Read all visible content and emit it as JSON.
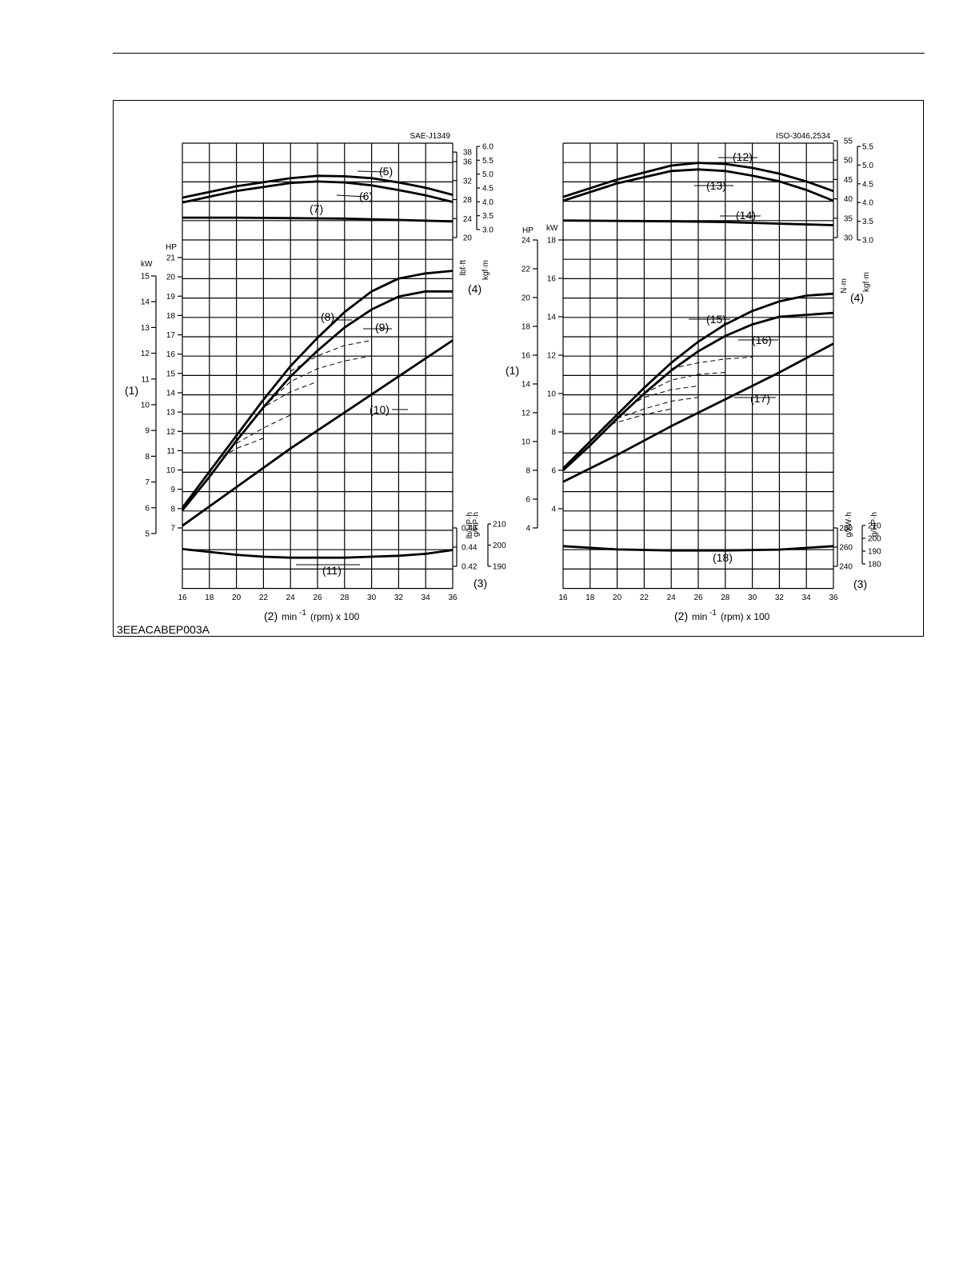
{
  "figure": {
    "code": "3EEACABEP003A"
  },
  "chart_data": [
    {
      "type": "line",
      "title": "SAE-J1349",
      "x_callout": "(2)",
      "x_unit": "min",
      "x_unit_sup": "-1",
      "x_unit_rest": "(rpm) x 100",
      "x_ticks": [
        "16",
        "18",
        "20",
        "22",
        "24",
        "26",
        "28",
        "30",
        "32",
        "34",
        "36"
      ],
      "xlim": [
        16,
        36
      ],
      "grid": true,
      "axes": {
        "kw": {
          "unit": "kW",
          "ticks": [
            "5",
            "6",
            "7",
            "8",
            "9",
            "10",
            "11",
            "12",
            "13",
            "14",
            "15"
          ]
        },
        "hp": {
          "unit": "HP",
          "ticks": [
            "7",
            "8",
            "9",
            "10",
            "11",
            "12",
            "13",
            "14",
            "15",
            "16",
            "17",
            "18",
            "19",
            "20",
            "21"
          ]
        },
        "lbft": {
          "unit": "lbf·ft",
          "ticks": [
            "20",
            "24",
            "28",
            "32",
            "36",
            "38"
          ]
        },
        "kgfm": {
          "unit": "kgf·m",
          "ticks": [
            "3.0",
            "3.5",
            "4.0",
            "4.5",
            "5.0",
            "5.5",
            "6.0"
          ]
        },
        "bsfc_lb": {
          "unit": "lb/HP·h",
          "ticks": [
            "0.42",
            "0.44",
            "0.46"
          ]
        },
        "bsfc_g": {
          "unit": "g/HP·h",
          "ticks": [
            "190",
            "200",
            "210"
          ]
        }
      },
      "callouts": {
        "power_axis": "(1)",
        "bsfc_axis": "(3)",
        "torque_axis": "(4)"
      },
      "series": [
        {
          "name": "(5)",
          "axis": "lbft",
          "points": [
            [
              16,
              28.4
            ],
            [
              20,
              30.8
            ],
            [
              24,
              32.5
            ],
            [
              26,
              33.0
            ],
            [
              28,
              32.9
            ],
            [
              30,
              32.5
            ],
            [
              32,
              31.6
            ],
            [
              34,
              30.5
            ],
            [
              36,
              29.0
            ]
          ]
        },
        {
          "name": "(6)",
          "axis": "lbft",
          "points": [
            [
              16,
              27.4
            ],
            [
              20,
              29.8
            ],
            [
              24,
              31.5
            ],
            [
              26,
              31.8
            ],
            [
              28,
              31.6
            ],
            [
              30,
              31.0
            ],
            [
              32,
              30.0
            ],
            [
              34,
              28.9
            ],
            [
              36,
              27.5
            ]
          ]
        },
        {
          "name": "(7)",
          "axis": "lbft",
          "points": [
            [
              16,
              24.2
            ],
            [
              20,
              24.2
            ],
            [
              24,
              24.1
            ],
            [
              28,
              24.0
            ],
            [
              32,
              23.7
            ],
            [
              36,
              23.4
            ]
          ]
        },
        {
          "name": "(8)",
          "axis": "kw",
          "points": [
            [
              16,
              6.0
            ],
            [
              18,
              7.4
            ],
            [
              20,
              8.8
            ],
            [
              22,
              10.2
            ],
            [
              24,
              11.5
            ],
            [
              26,
              12.6
            ],
            [
              28,
              13.6
            ],
            [
              30,
              14.4
            ],
            [
              32,
              14.9
            ],
            [
              34,
              15.1
            ],
            [
              36,
              15.2
            ]
          ]
        },
        {
          "name": "(9)",
          "axis": "kw",
          "points": [
            [
              16,
              5.9
            ],
            [
              18,
              7.2
            ],
            [
              20,
              8.6
            ],
            [
              22,
              9.9
            ],
            [
              24,
              11.1
            ],
            [
              26,
              12.1
            ],
            [
              28,
              13.0
            ],
            [
              30,
              13.7
            ],
            [
              32,
              14.2
            ],
            [
              34,
              14.4
            ],
            [
              36,
              14.4
            ]
          ]
        },
        {
          "name": "(10)",
          "axis": "kw",
          "points": [
            [
              16,
              5.3
            ],
            [
              20,
              6.8
            ],
            [
              24,
              8.3
            ],
            [
              28,
              9.7
            ],
            [
              32,
              11.1
            ],
            [
              36,
              12.5
            ]
          ]
        },
        {
          "name": "(11)",
          "axis": "bsfc_lb",
          "points": [
            [
              16,
              0.438
            ],
            [
              18,
              0.435
            ],
            [
              20,
              0.432
            ],
            [
              22,
              0.43
            ],
            [
              24,
              0.429
            ],
            [
              26,
              0.429
            ],
            [
              28,
              0.429
            ],
            [
              30,
              0.43
            ],
            [
              32,
              0.431
            ],
            [
              34,
              0.433
            ],
            [
              36,
              0.437
            ]
          ]
        }
      ],
      "partial_load_curves": [
        {
          "points": [
            [
              24,
              11.3
            ],
            [
              26,
              11.9
            ],
            [
              28,
              12.3
            ],
            [
              30,
              12.5
            ]
          ]
        },
        {
          "points": [
            [
              22,
              9.9
            ],
            [
              24,
              10.9
            ],
            [
              26,
              11.4
            ],
            [
              28,
              11.7
            ],
            [
              30,
              11.9
            ]
          ]
        },
        {
          "points": [
            [
              21,
              9.3
            ],
            [
              22,
              9.9
            ],
            [
              24,
              10.5
            ],
            [
              26,
              10.9
            ]
          ]
        },
        {
          "points": [
            [
              20,
              8.5
            ],
            [
              22,
              9.1
            ],
            [
              24,
              9.6
            ]
          ]
        },
        {
          "points": [
            [
              19,
              8.0
            ],
            [
              20,
              8.3
            ],
            [
              22,
              8.7
            ]
          ]
        }
      ]
    },
    {
      "type": "line",
      "title": "ISO-3046,2534",
      "x_callout": "(2)",
      "x_unit": "min",
      "x_unit_sup": "-1",
      "x_unit_rest": "(rpm) x 100",
      "x_ticks": [
        "16",
        "18",
        "20",
        "22",
        "24",
        "26",
        "28",
        "30",
        "32",
        "34",
        "36"
      ],
      "xlim": [
        16,
        36
      ],
      "grid": true,
      "axes": {
        "hp": {
          "unit": "HP",
          "ticks": [
            "4",
            "6",
            "8",
            "10",
            "12",
            "14",
            "16",
            "18",
            "20",
            "22",
            "24"
          ]
        },
        "kw": {
          "unit": "kW",
          "ticks": [
            "4",
            "6",
            "8",
            "10",
            "12",
            "14",
            "16",
            "18"
          ]
        },
        "nm": {
          "unit": "N·m",
          "ticks": [
            "30",
            "35",
            "40",
            "45",
            "50",
            "55"
          ]
        },
        "kgfm": {
          "unit": "kgf·m",
          "ticks": [
            "3.0",
            "3.5",
            "4.0",
            "4.5",
            "5.0",
            "5.5"
          ]
        },
        "bsfc_kw": {
          "unit": "g/kW·h",
          "ticks": [
            "240",
            "260",
            "280"
          ]
        },
        "bsfc_hp": {
          "unit": "g/HP·h",
          "ticks": [
            "180",
            "190",
            "200",
            "210"
          ]
        }
      },
      "callouts": {
        "power_axis": "(1)",
        "bsfc_axis": "(3)",
        "torque_axis": "(4)"
      },
      "series": [
        {
          "name": "(12)",
          "axis": "nm",
          "points": [
            [
              16,
              40.5
            ],
            [
              20,
              45.0
            ],
            [
              24,
              48.6
            ],
            [
              26,
              49.3
            ],
            [
              28,
              49.0
            ],
            [
              30,
              48.0
            ],
            [
              32,
              46.5
            ],
            [
              34,
              44.5
            ],
            [
              36,
              42.0
            ]
          ]
        },
        {
          "name": "(13)",
          "axis": "nm",
          "points": [
            [
              16,
              39.5
            ],
            [
              20,
              44.0
            ],
            [
              24,
              47.2
            ],
            [
              26,
              47.6
            ],
            [
              28,
              47.2
            ],
            [
              30,
              46.0
            ],
            [
              32,
              44.5
            ],
            [
              34,
              42.3
            ],
            [
              36,
              39.5
            ]
          ]
        },
        {
          "name": "(14)",
          "axis": "nm",
          "points": [
            [
              16,
              34.4
            ],
            [
              20,
              34.3
            ],
            [
              24,
              34.2
            ],
            [
              28,
              34.0
            ],
            [
              32,
              33.6
            ],
            [
              36,
              33.2
            ]
          ]
        },
        {
          "name": "(15)",
          "axis": "kw",
          "points": [
            [
              16,
              6.1
            ],
            [
              18,
              7.5
            ],
            [
              20,
              8.9
            ],
            [
              22,
              10.3
            ],
            [
              24,
              11.6
            ],
            [
              26,
              12.7
            ],
            [
              28,
              13.6
            ],
            [
              30,
              14.3
            ],
            [
              32,
              14.8
            ],
            [
              34,
              15.1
            ],
            [
              36,
              15.2
            ]
          ]
        },
        {
          "name": "(16)",
          "axis": "kw",
          "points": [
            [
              16,
              6.0
            ],
            [
              18,
              7.3
            ],
            [
              20,
              8.7
            ],
            [
              22,
              10.0
            ],
            [
              24,
              11.2
            ],
            [
              26,
              12.2
            ],
            [
              28,
              13.0
            ],
            [
              30,
              13.6
            ],
            [
              32,
              14.0
            ],
            [
              34,
              14.1
            ],
            [
              36,
              14.2
            ]
          ]
        },
        {
          "name": "(17)",
          "axis": "kw",
          "points": [
            [
              16,
              5.4
            ],
            [
              20,
              6.8
            ],
            [
              24,
              8.3
            ],
            [
              28,
              9.7
            ],
            [
              32,
              11.1
            ],
            [
              36,
              12.6
            ]
          ]
        },
        {
          "name": "(18)",
          "axis": "bsfc_kw",
          "points": [
            [
              16,
              261
            ],
            [
              20,
              257.6
            ],
            [
              24,
              256.5
            ],
            [
              28,
              256.5
            ],
            [
              32,
              257.4
            ],
            [
              36,
              261
            ]
          ]
        }
      ],
      "partial_load_curves": [
        {
          "points": [
            [
              24,
              11.3
            ],
            [
              26,
              11.6
            ],
            [
              28,
              11.8
            ],
            [
              30,
              11.9
            ]
          ]
        },
        {
          "points": [
            [
              22,
              10.0
            ],
            [
              24,
              10.7
            ],
            [
              26,
              11.0
            ],
            [
              28,
              11.1
            ]
          ]
        },
        {
          "points": [
            [
              21,
              9.4
            ],
            [
              22,
              9.8
            ],
            [
              24,
              10.2
            ],
            [
              26,
              10.4
            ]
          ]
        },
        {
          "points": [
            [
              20,
              8.7
            ],
            [
              22,
              9.2
            ],
            [
              24,
              9.6
            ],
            [
              26,
              9.8
            ]
          ]
        },
        {
          "points": [
            [
              19,
              8.3
            ],
            [
              20,
              8.5
            ],
            [
              22,
              8.9
            ],
            [
              24,
              9.2
            ]
          ]
        }
      ]
    }
  ]
}
